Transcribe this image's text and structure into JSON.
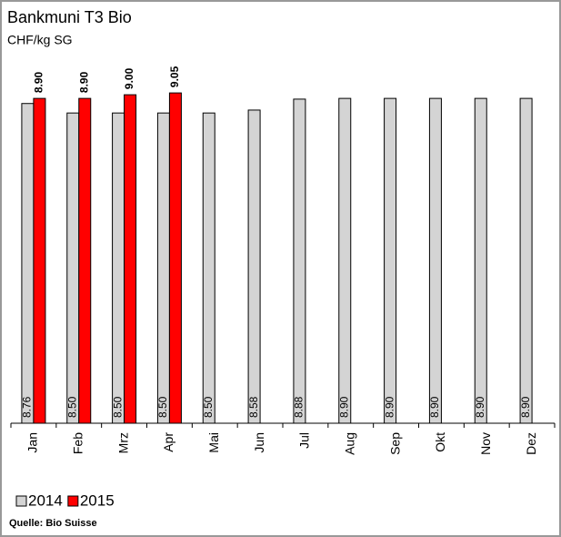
{
  "chart_data": {
    "type": "bar",
    "title": "Bankmuni T3 Bio",
    "subtitle": "CHF/kg SG",
    "source": "Quelle: Bio Suisse",
    "categories": [
      "Jan",
      "Feb",
      "Mrz",
      "Apr",
      "Mai",
      "Jun",
      "Jul",
      "Aug",
      "Sep",
      "Okt",
      "Nov",
      "Dez"
    ],
    "series": [
      {
        "name": "2014",
        "color": "#d4d4d4",
        "values": [
          8.76,
          8.5,
          8.5,
          8.5,
          8.5,
          8.58,
          8.88,
          8.9,
          8.9,
          8.9,
          8.9,
          8.9
        ],
        "value_labels": [
          "8.76",
          "8.50",
          "8.50",
          "8.50",
          "8.50",
          "8.58",
          "8.88",
          "8.90",
          "8.90",
          "8.90",
          "8.90",
          "8.90"
        ]
      },
      {
        "name": "2015",
        "color": "#ff0000",
        "values": [
          8.9,
          8.9,
          9.0,
          9.05,
          null,
          null,
          null,
          null,
          null,
          null,
          null,
          null
        ],
        "value_labels": [
          "8.90",
          "8.90",
          "9.00",
          "9.05",
          null,
          null,
          null,
          null,
          null,
          null,
          null,
          null
        ]
      }
    ],
    "ylim": [
      0,
      10
    ]
  }
}
